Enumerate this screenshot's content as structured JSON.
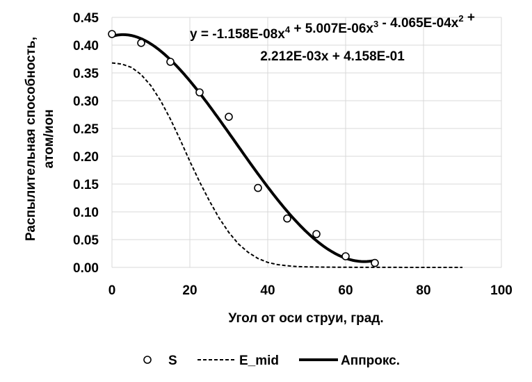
{
  "chart_data": {
    "type": "scatter",
    "xlabel": "Угол от оси струи, град.",
    "ylabel_lines": [
      "Распылительная способность,",
      "атом/ион"
    ],
    "xlim": [
      0,
      100
    ],
    "ylim": [
      0,
      0.45
    ],
    "x_ticks": [
      "0",
      "20",
      "40",
      "60",
      "80",
      "100"
    ],
    "y_ticks": [
      "0.00",
      "0.05",
      "0.10",
      "0.15",
      "0.20",
      "0.25",
      "0.30",
      "0.35",
      "0.40",
      "0.45"
    ],
    "grid": true,
    "legend_position": "bottom",
    "equation_lines": [
      "y = -1.158E-08x4 + 5.007E-06x3 - 4.065E-04x2 +",
      "2.212E-03x + 4.158E-01"
    ],
    "series": [
      {
        "name": "S",
        "style": "markers",
        "x": [
          0,
          7.5,
          15,
          22.5,
          30,
          37.5,
          45,
          52.5,
          60,
          67.5
        ],
        "y": [
          0.42,
          0.404,
          0.37,
          0.315,
          0.271,
          0.143,
          0.088,
          0.06,
          0.02,
          0.008
        ]
      },
      {
        "name": "E_mid",
        "style": "dashed",
        "x": [
          0,
          2.5,
          5,
          7.5,
          10,
          12.5,
          15,
          17.5,
          20,
          22.5,
          25,
          27.5,
          30,
          32.5,
          35,
          37.5,
          40,
          42.5,
          45,
          47.5,
          50,
          55,
          60,
          70,
          80,
          90
        ],
        "y": [
          0.368,
          0.366,
          0.36,
          0.347,
          0.327,
          0.3,
          0.267,
          0.23,
          0.191,
          0.154,
          0.12,
          0.089,
          0.063,
          0.042,
          0.027,
          0.016,
          0.009,
          0.005,
          0.003,
          0.0015,
          0.001,
          0.0005,
          0.0002,
          0.0001,
          0.0,
          0.0
        ]
      },
      {
        "name": "Аппрокс.",
        "style": "solid",
        "x": [
          0,
          67.5
        ]
      }
    ],
    "fit_coefficients": [
      -1.158e-08,
      5.007e-06,
      -0.0004065,
      0.002212,
      0.4158
    ]
  }
}
